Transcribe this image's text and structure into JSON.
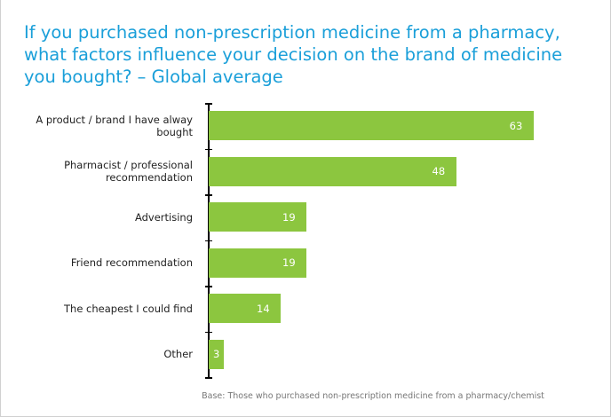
{
  "title": "If you purchased non-prescription medicine from a pharmacy, what factors influence your decision on the brand of medicine you bought? – Global average",
  "chart_data": {
    "type": "bar",
    "orientation": "horizontal",
    "categories": [
      "A product / brand I have alway bought",
      "Pharmacist / professional recommendation",
      "Advertising",
      "Friend recommendation",
      "The cheapest I could find",
      "Other"
    ],
    "values": [
      63,
      48,
      19,
      19,
      14,
      3
    ],
    "color": "#8cc63f"
  },
  "note": "Base:  Those who purchased non-prescription medicine from a pharmacy/chemist"
}
